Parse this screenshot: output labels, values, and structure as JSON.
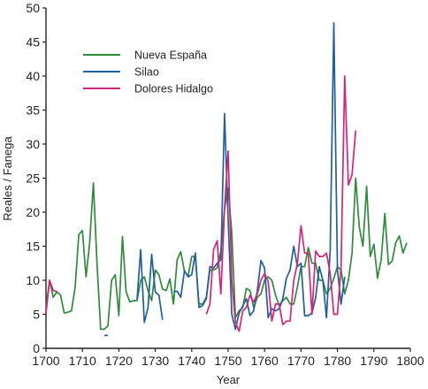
{
  "chart_data": {
    "type": "line",
    "title": "",
    "xlabel": "Year",
    "ylabel": "Reales / Fanega",
    "xlim": [
      1700,
      1800
    ],
    "ylim": [
      0,
      50
    ],
    "x_ticks": [
      1700,
      1710,
      1720,
      1730,
      1740,
      1750,
      1760,
      1770,
      1780,
      1790,
      1800
    ],
    "y_ticks": [
      0,
      5,
      10,
      15,
      20,
      25,
      30,
      35,
      40,
      45,
      50
    ],
    "grid": false,
    "legend_position": "top-left",
    "series": [
      {
        "name": "Nueva España",
        "color": "#2e8b3a",
        "segments": [
          [
            [
              1700,
              6
            ],
            [
              1701,
              10
            ],
            [
              1702,
              7.5
            ],
            [
              1703,
              8.3
            ],
            [
              1704,
              7.8
            ],
            [
              1705,
              5.2
            ],
            [
              1706,
              5.3
            ],
            [
              1707,
              5.5
            ],
            [
              1708,
              9
            ],
            [
              1709,
              16.7
            ],
            [
              1710,
              17.3
            ],
            [
              1711,
              10.5
            ],
            [
              1712,
              15.5
            ],
            [
              1713,
              24.3
            ],
            [
              1714,
              12.5
            ],
            [
              1715,
              2.8
            ],
            [
              1716,
              2.8
            ],
            [
              1717,
              3.3
            ],
            [
              1718,
              10
            ],
            [
              1719,
              10.8
            ],
            [
              1720,
              4.8
            ],
            [
              1721,
              16.4
            ],
            [
              1722,
              8.3
            ],
            [
              1723,
              6.8
            ],
            [
              1724,
              7
            ],
            [
              1725,
              7
            ],
            [
              1726,
              10
            ],
            [
              1727,
              10.5
            ],
            [
              1728,
              8.5
            ],
            [
              1729,
              7
            ],
            [
              1730,
              11.5
            ],
            [
              1731,
              10.8
            ],
            [
              1732,
              8.7
            ],
            [
              1733,
              8.5
            ],
            [
              1734,
              10.2
            ],
            [
              1735,
              6.5
            ],
            [
              1736,
              13
            ],
            [
              1737,
              14.2
            ],
            [
              1738,
              11.3
            ],
            [
              1739,
              10.6
            ],
            [
              1740,
              13.5
            ],
            [
              1741,
              13.5
            ],
            [
              1742,
              6.5
            ],
            [
              1743,
              6.5
            ],
            [
              1744,
              7.5
            ],
            [
              1745,
              11.5
            ],
            [
              1746,
              11.5
            ],
            [
              1747,
              11.8
            ],
            [
              1748,
              14.3
            ],
            [
              1749,
              20.5
            ],
            [
              1750,
              23.5
            ],
            [
              1751,
              17
            ],
            [
              1752,
              4.5
            ],
            [
              1753,
              5.5
            ],
            [
              1754,
              6
            ],
            [
              1755,
              8.8
            ],
            [
              1756,
              8.5
            ],
            [
              1757,
              6
            ],
            [
              1758,
              7.5
            ],
            [
              1759,
              8
            ],
            [
              1760,
              10
            ],
            [
              1761,
              10.5
            ],
            [
              1762,
              10
            ],
            [
              1763,
              7.8
            ],
            [
              1764,
              6.3
            ],
            [
              1765,
              7
            ],
            [
              1766,
              7.5
            ],
            [
              1767,
              6.5
            ],
            [
              1768,
              6.5
            ],
            [
              1769,
              9
            ],
            [
              1770,
              12
            ],
            [
              1771,
              12
            ],
            [
              1772,
              14.8
            ],
            [
              1773,
              12.5
            ],
            [
              1774,
              12.5
            ],
            [
              1775,
              10
            ],
            [
              1776,
              10
            ],
            [
              1777,
              8
            ],
            [
              1778,
              8.8
            ],
            [
              1779,
              10.3
            ],
            [
              1780,
              12
            ],
            [
              1781,
              11.5
            ],
            [
              1782,
              8
            ],
            [
              1783,
              10
            ],
            [
              1784,
              14
            ],
            [
              1785,
              25
            ],
            [
              1786,
              17.8
            ],
            [
              1787,
              15
            ],
            [
              1788,
              23.8
            ],
            [
              1789,
              13.5
            ],
            [
              1790,
              15.3
            ],
            [
              1791,
              10.3
            ],
            [
              1792,
              13
            ],
            [
              1793,
              19.8
            ],
            [
              1794,
              12.3
            ],
            [
              1795,
              12.8
            ],
            [
              1796,
              15.5
            ],
            [
              1797,
              16.5
            ],
            [
              1798,
              14
            ],
            [
              1799,
              15.5
            ]
          ]
        ]
      },
      {
        "name": "Silao",
        "color": "#1f5f9e",
        "segments": [
          [
            [
              1716,
              1.9
            ],
            [
              1717,
              1.9
            ]
          ],
          [
            [
              1725,
              7.2
            ],
            [
              1726,
              14.5
            ],
            [
              1727,
              3.8
            ],
            [
              1728,
              6
            ],
            [
              1729,
              13.8
            ],
            [
              1730,
              8.3
            ],
            [
              1731,
              7.8
            ],
            [
              1732,
              4.2
            ]
          ],
          [
            [
              1735,
              8.3
            ],
            [
              1736,
              8.4
            ],
            [
              1737,
              7.5
            ],
            [
              1738,
              11.4
            ],
            [
              1739,
              10.5
            ],
            [
              1740,
              10.8
            ],
            [
              1741,
              14
            ],
            [
              1742,
              6
            ],
            [
              1743,
              6.3
            ],
            [
              1744,
              7.3
            ],
            [
              1745,
              12
            ],
            [
              1746,
              11.8
            ],
            [
              1747,
              12.5
            ],
            [
              1748,
              13
            ],
            [
              1749,
              34.5
            ],
            [
              1750,
              19
            ],
            [
              1751,
              5
            ],
            [
              1752,
              2.8
            ],
            [
              1753,
              5.2
            ],
            [
              1754,
              6.2
            ],
            [
              1755,
              7.3
            ],
            [
              1756,
              4.8
            ],
            [
              1757,
              5.5
            ],
            [
              1758,
              8.5
            ],
            [
              1759,
              12.9
            ],
            [
              1760,
              11.8
            ],
            [
              1761,
              4.5
            ],
            [
              1762,
              5.8
            ],
            [
              1763,
              5.5
            ],
            [
              1764,
              5.8
            ],
            [
              1765,
              7.3
            ],
            [
              1766,
              10.3
            ],
            [
              1767,
              11.5
            ],
            [
              1768,
              15
            ],
            [
              1769,
              12
            ],
            [
              1770,
              12.5
            ],
            [
              1771,
              4.8
            ],
            [
              1772,
              4.8
            ],
            [
              1773,
              5.2
            ],
            [
              1774,
              7.4
            ],
            [
              1775,
              12
            ],
            [
              1776,
              10
            ],
            [
              1777,
              4.5
            ],
            [
              1778,
              14.5
            ],
            [
              1779,
              47.8
            ],
            [
              1780,
              11.5
            ],
            [
              1781,
              6.5
            ],
            [
              1782,
              10.5
            ]
          ]
        ]
      },
      {
        "name": "Dolores Hidalgo",
        "color": "#d6247a",
        "segments": [
          [
            [
              1700,
              5.1
            ],
            [
              1701,
              10
            ],
            [
              1702,
              8.5
            ],
            [
              1703,
              8.3
            ]
          ],
          [
            [
              1744,
              5
            ],
            [
              1745,
              6.5
            ],
            [
              1746,
              14.5
            ],
            [
              1747,
              15.8
            ],
            [
              1748,
              8
            ],
            [
              1749,
              20.5
            ],
            [
              1750,
              29
            ],
            [
              1751,
              10
            ],
            [
              1752,
              3.8
            ],
            [
              1753,
              2.5
            ],
            [
              1754,
              5.5
            ],
            [
              1755,
              6
            ],
            [
              1756,
              7.8
            ],
            [
              1757,
              6.8
            ],
            [
              1758,
              8
            ],
            [
              1759,
              10
            ],
            [
              1760,
              11
            ],
            [
              1761,
              9.8
            ],
            [
              1762,
              4
            ],
            [
              1763,
              6.5
            ],
            [
              1764,
              6.5
            ],
            [
              1765,
              3.5
            ],
            [
              1766,
              4
            ],
            [
              1767,
              4
            ],
            [
              1768,
              10
            ],
            [
              1769,
              12.5
            ],
            [
              1770,
              18
            ],
            [
              1771,
              14
            ],
            [
              1772,
              14
            ],
            [
              1773,
              5
            ],
            [
              1774,
              14.3
            ],
            [
              1775,
              13.5
            ],
            [
              1776,
              13.5
            ],
            [
              1777,
              14
            ],
            [
              1778,
              11
            ],
            [
              1779,
              5
            ],
            [
              1780,
              5
            ],
            [
              1781,
              12
            ],
            [
              1782,
              40
            ],
            [
              1783,
              24
            ],
            [
              1784,
              25.5
            ],
            [
              1785,
              32
            ]
          ]
        ]
      }
    ]
  }
}
